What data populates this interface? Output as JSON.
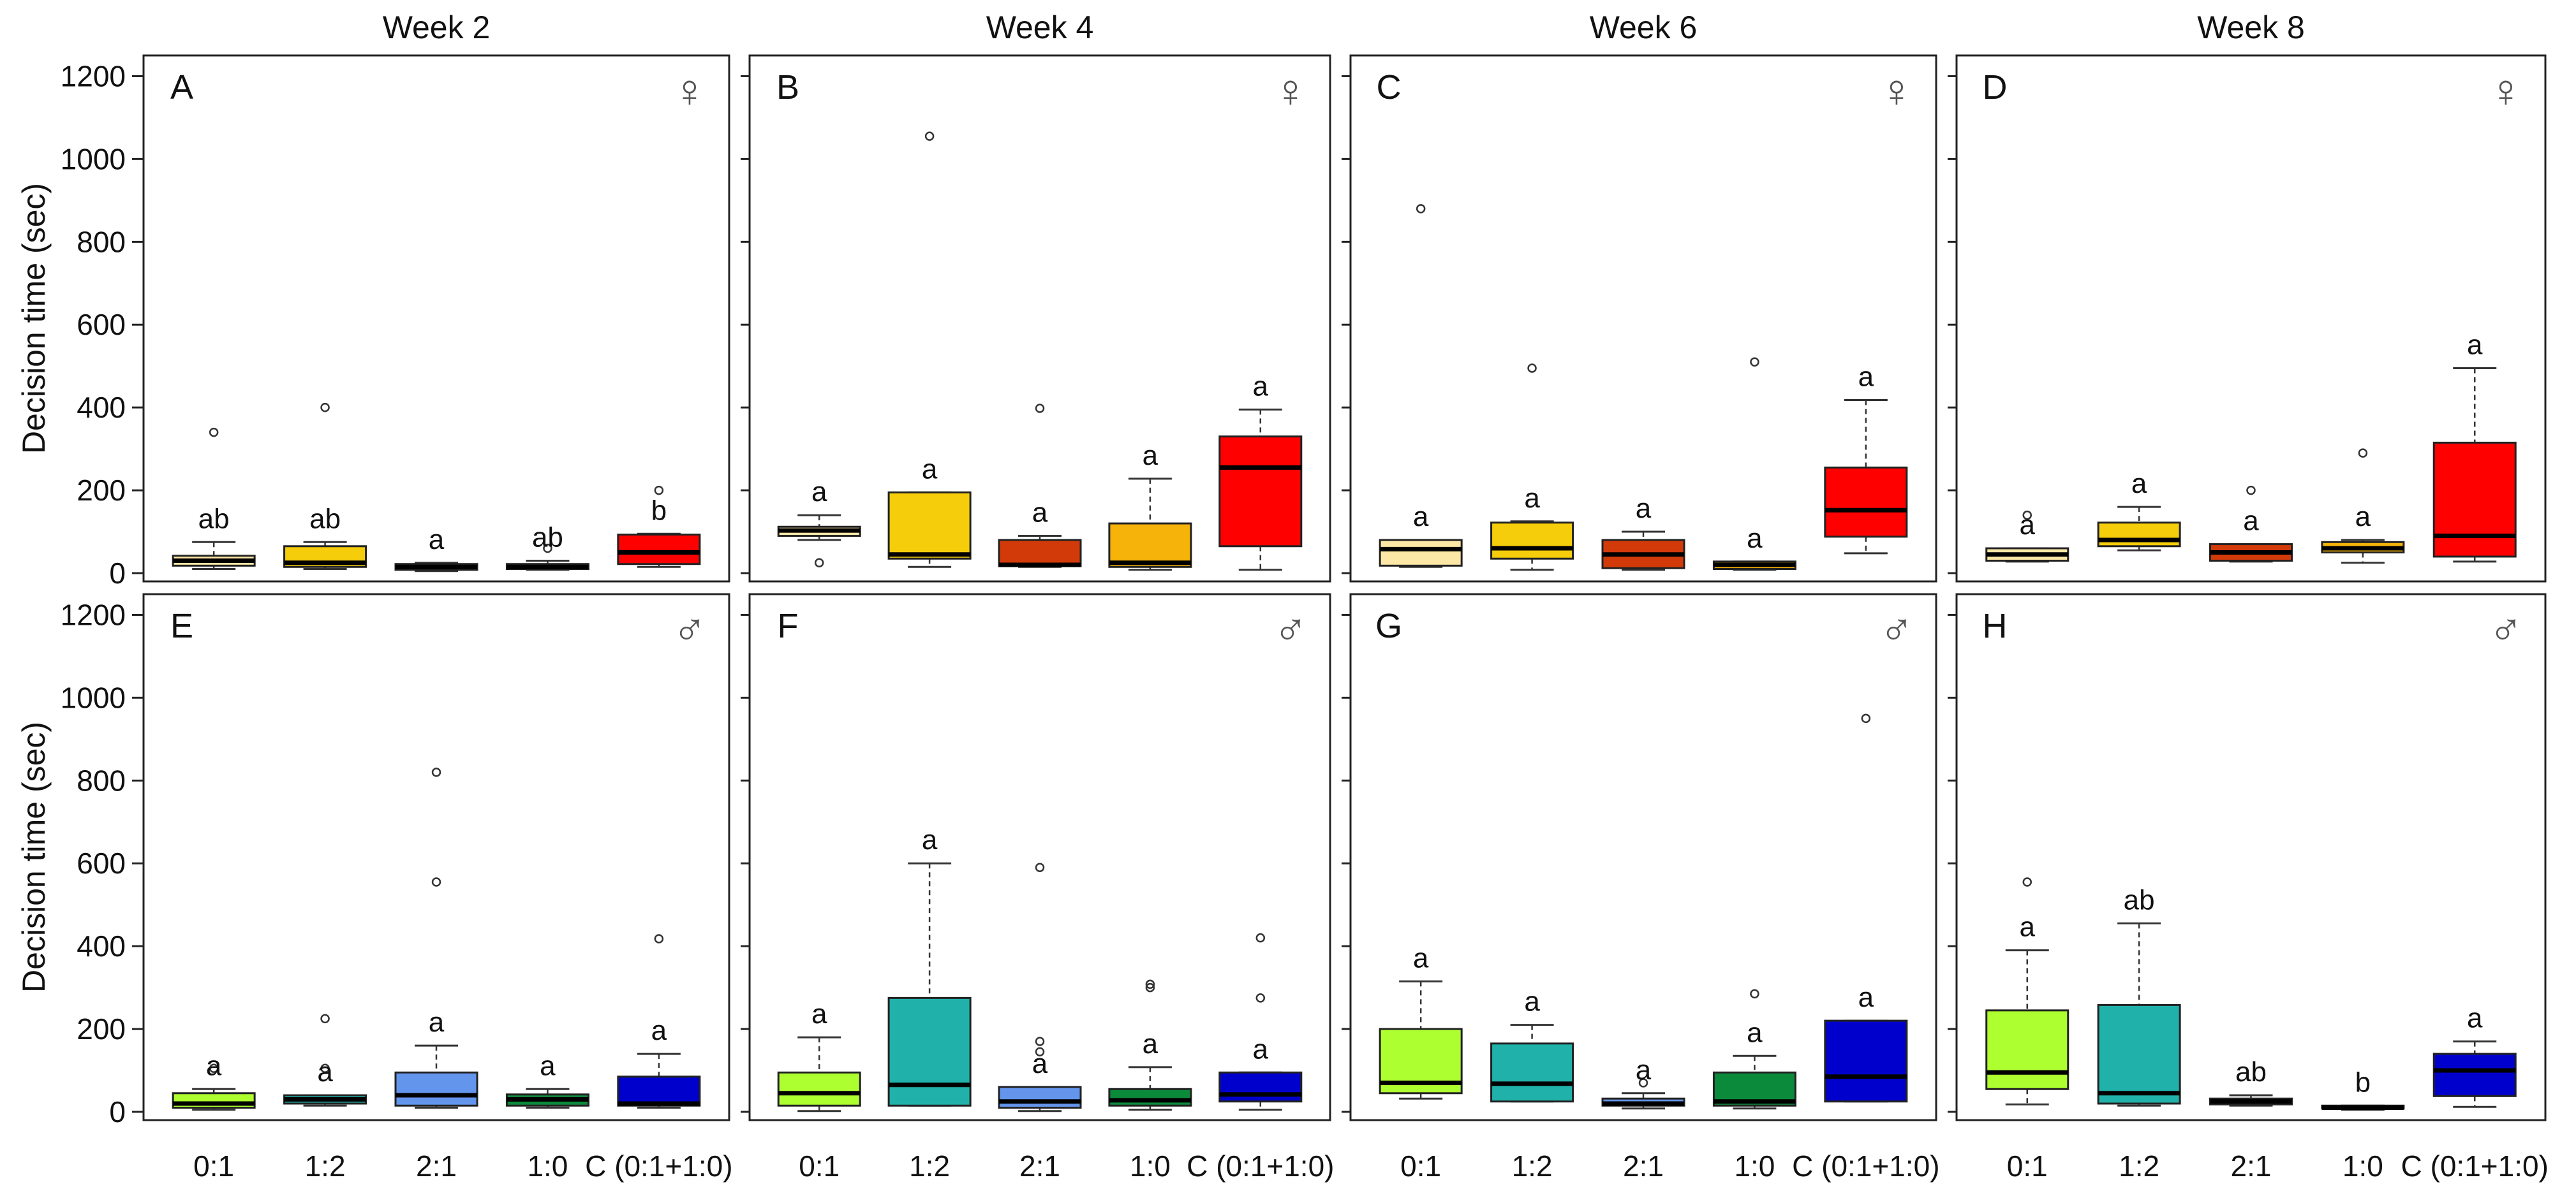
{
  "chart_data": {
    "type": "boxplot",
    "ylabel": "Decision time (sec)",
    "ylim": [
      -20,
      1250
    ],
    "yticks": [
      0,
      200,
      400,
      600,
      800,
      1000,
      1200
    ],
    "weeks": [
      "Week 2",
      "Week 4",
      "Week 6",
      "Week 8"
    ],
    "categories": [
      "0:1",
      "1:2",
      "2:1",
      "1:0",
      "C (0:1+1:0)"
    ],
    "rows": [
      {
        "sex": "female",
        "symbol": "♀",
        "colors": [
          "#FCE7A6",
          "#F5CD0A",
          "#D33A0A",
          "#F6B40A",
          "#FF0000"
        ]
      },
      {
        "sex": "male",
        "symbol": "♂",
        "colors": [
          "#ADFF2F",
          "#20B2AA",
          "#6495ED",
          "#0B8A3C",
          "#0000CD"
        ]
      }
    ],
    "panels": [
      {
        "letter": "A",
        "week": "Week 2",
        "sex": "female",
        "boxes": [
          {
            "cat": "0:1",
            "min": 10,
            "q1": 18,
            "median": 30,
            "q3": 42,
            "max": 75,
            "outliers": [
              340
            ],
            "sig": "ab"
          },
          {
            "cat": "1:2",
            "min": 10,
            "q1": 15,
            "median": 25,
            "q3": 65,
            "max": 75,
            "outliers": [
              400
            ],
            "sig": "ab"
          },
          {
            "cat": "2:1",
            "min": 5,
            "q1": 8,
            "median": 15,
            "q3": 22,
            "max": 25,
            "outliers": [],
            "sig": "a"
          },
          {
            "cat": "1:0",
            "min": 8,
            "q1": 10,
            "median": 15,
            "q3": 22,
            "max": 30,
            "outliers": [
              60
            ],
            "sig": "ab"
          },
          {
            "cat": "C (0:1+1:0)",
            "min": 15,
            "q1": 22,
            "median": 50,
            "q3": 93,
            "max": 95,
            "outliers": [
              200
            ],
            "sig": "b"
          }
        ]
      },
      {
        "letter": "B",
        "week": "Week 4",
        "sex": "female",
        "boxes": [
          {
            "cat": "0:1",
            "min": 80,
            "q1": 90,
            "median": 103,
            "q3": 112,
            "max": 140,
            "outliers": [
              25
            ],
            "sig": "a"
          },
          {
            "cat": "1:2",
            "min": 15,
            "q1": 35,
            "median": 45,
            "q3": 195,
            "max": 195,
            "outliers": [
              1055
            ],
            "sig": "a"
          },
          {
            "cat": "2:1",
            "min": 15,
            "q1": 17,
            "median": 20,
            "q3": 80,
            "max": 90,
            "outliers": [
              398
            ],
            "sig": "a"
          },
          {
            "cat": "1:0",
            "min": 8,
            "q1": 15,
            "median": 25,
            "q3": 120,
            "max": 228,
            "outliers": [],
            "sig": "a"
          },
          {
            "cat": "C (0:1+1:0)",
            "min": 8,
            "q1": 65,
            "median": 255,
            "q3": 330,
            "max": 395,
            "outliers": [],
            "sig": "a"
          }
        ]
      },
      {
        "letter": "C",
        "week": "Week 6",
        "sex": "female",
        "boxes": [
          {
            "cat": "0:1",
            "min": 15,
            "q1": 18,
            "median": 58,
            "q3": 80,
            "max": 80,
            "outliers": [
              880
            ],
            "sig": "a"
          },
          {
            "cat": "1:2",
            "min": 8,
            "q1": 35,
            "median": 60,
            "q3": 122,
            "max": 125,
            "outliers": [
              495
            ],
            "sig": "a"
          },
          {
            "cat": "2:1",
            "min": 8,
            "q1": 12,
            "median": 45,
            "q3": 80,
            "max": 100,
            "outliers": [],
            "sig": "a"
          },
          {
            "cat": "1:0",
            "min": 8,
            "q1": 10,
            "median": 20,
            "q3": 28,
            "max": 28,
            "outliers": [
              510
            ],
            "sig": "a"
          },
          {
            "cat": "C (0:1+1:0)",
            "min": 48,
            "q1": 88,
            "median": 152,
            "q3": 255,
            "max": 418,
            "outliers": [],
            "sig": "a"
          }
        ]
      },
      {
        "letter": "D",
        "week": "Week 8",
        "sex": "female",
        "boxes": [
          {
            "cat": "0:1",
            "min": 28,
            "q1": 30,
            "median": 45,
            "q3": 60,
            "max": 60,
            "outliers": [
              140
            ],
            "sig": "a"
          },
          {
            "cat": "1:2",
            "min": 55,
            "q1": 65,
            "median": 80,
            "q3": 122,
            "max": 160,
            "outliers": [],
            "sig": "a"
          },
          {
            "cat": "2:1",
            "min": 28,
            "q1": 30,
            "median": 50,
            "q3": 70,
            "max": 70,
            "outliers": [
              200
            ],
            "sig": "a"
          },
          {
            "cat": "1:0",
            "min": 25,
            "q1": 50,
            "median": 60,
            "q3": 75,
            "max": 80,
            "outliers": [
              290
            ],
            "sig": "a"
          },
          {
            "cat": "C (0:1+1:0)",
            "min": 28,
            "q1": 40,
            "median": 90,
            "q3": 315,
            "max": 495,
            "outliers": [],
            "sig": "a"
          }
        ]
      },
      {
        "letter": "E",
        "week": "Week 2",
        "sex": "male",
        "boxes": [
          {
            "cat": "0:1",
            "min": 5,
            "q1": 10,
            "median": 20,
            "q3": 45,
            "max": 55,
            "outliers": [
              105
            ],
            "sig": "a"
          },
          {
            "cat": "1:2",
            "min": 15,
            "q1": 20,
            "median": 30,
            "q3": 40,
            "max": 40,
            "outliers": [
              105,
              225
            ],
            "sig": "a"
          },
          {
            "cat": "2:1",
            "min": 10,
            "q1": 15,
            "median": 40,
            "q3": 95,
            "max": 160,
            "outliers": [
              555,
              820
            ],
            "sig": "a"
          },
          {
            "cat": "1:0",
            "min": 10,
            "q1": 15,
            "median": 30,
            "q3": 42,
            "max": 55,
            "outliers": [],
            "sig": "a"
          },
          {
            "cat": "C (0:1+1:0)",
            "min": 10,
            "q1": 15,
            "median": 20,
            "q3": 85,
            "max": 140,
            "outliers": [
              418
            ],
            "sig": "a"
          }
        ]
      },
      {
        "letter": "F",
        "week": "Week 4",
        "sex": "male",
        "boxes": [
          {
            "cat": "0:1",
            "min": 2,
            "q1": 15,
            "median": 45,
            "q3": 95,
            "max": 180,
            "outliers": [],
            "sig": "a"
          },
          {
            "cat": "1:2",
            "min": 15,
            "q1": 15,
            "median": 65,
            "q3": 275,
            "max": 600,
            "outliers": [],
            "sig": "a"
          },
          {
            "cat": "2:1",
            "min": 2,
            "q1": 10,
            "median": 25,
            "q3": 60,
            "max": 60,
            "outliers": [
              145,
              170,
              590
            ],
            "sig": "a"
          },
          {
            "cat": "1:0",
            "min": 5,
            "q1": 15,
            "median": 28,
            "q3": 55,
            "max": 108,
            "outliers": [
              300,
              308
            ],
            "sig": "a"
          },
          {
            "cat": "C (0:1+1:0)",
            "min": 5,
            "q1": 25,
            "median": 42,
            "q3": 95,
            "max": 95,
            "outliers": [
              275,
              420
            ],
            "sig": "a"
          }
        ]
      },
      {
        "letter": "G",
        "week": "Week 6",
        "sex": "male",
        "boxes": [
          {
            "cat": "0:1",
            "min": 32,
            "q1": 45,
            "median": 70,
            "q3": 200,
            "max": 315,
            "outliers": [],
            "sig": "a"
          },
          {
            "cat": "1:2",
            "min": 25,
            "q1": 25,
            "median": 68,
            "q3": 165,
            "max": 210,
            "outliers": [],
            "sig": "a"
          },
          {
            "cat": "2:1",
            "min": 8,
            "q1": 15,
            "median": 20,
            "q3": 32,
            "max": 45,
            "outliers": [
              70
            ],
            "sig": "a"
          },
          {
            "cat": "1:0",
            "min": 8,
            "q1": 15,
            "median": 25,
            "q3": 95,
            "max": 135,
            "outliers": [
              285
            ],
            "sig": "a"
          },
          {
            "cat": "C (0:1+1:0)",
            "min": 25,
            "q1": 25,
            "median": 85,
            "q3": 220,
            "max": 220,
            "outliers": [
              950
            ],
            "sig": "a"
          }
        ]
      },
      {
        "letter": "H",
        "week": "Week 8",
        "sex": "male",
        "boxes": [
          {
            "cat": "0:1",
            "min": 18,
            "q1": 55,
            "median": 95,
            "q3": 245,
            "max": 390,
            "outliers": [
              555
            ],
            "sig": "a"
          },
          {
            "cat": "1:2",
            "min": 15,
            "q1": 20,
            "median": 45,
            "q3": 258,
            "max": 455,
            "outliers": [],
            "sig": "ab"
          },
          {
            "cat": "2:1",
            "min": 15,
            "q1": 18,
            "median": 25,
            "q3": 32,
            "max": 40,
            "outliers": [],
            "sig": "ab"
          },
          {
            "cat": "1:0",
            "min": 5,
            "q1": 8,
            "median": 10,
            "q3": 15,
            "max": 15,
            "outliers": [],
            "sig": "b"
          },
          {
            "cat": "C (0:1+1:0)",
            "min": 12,
            "q1": 38,
            "median": 100,
            "q3": 140,
            "max": 170,
            "outliers": [],
            "sig": "a"
          }
        ]
      }
    ]
  }
}
